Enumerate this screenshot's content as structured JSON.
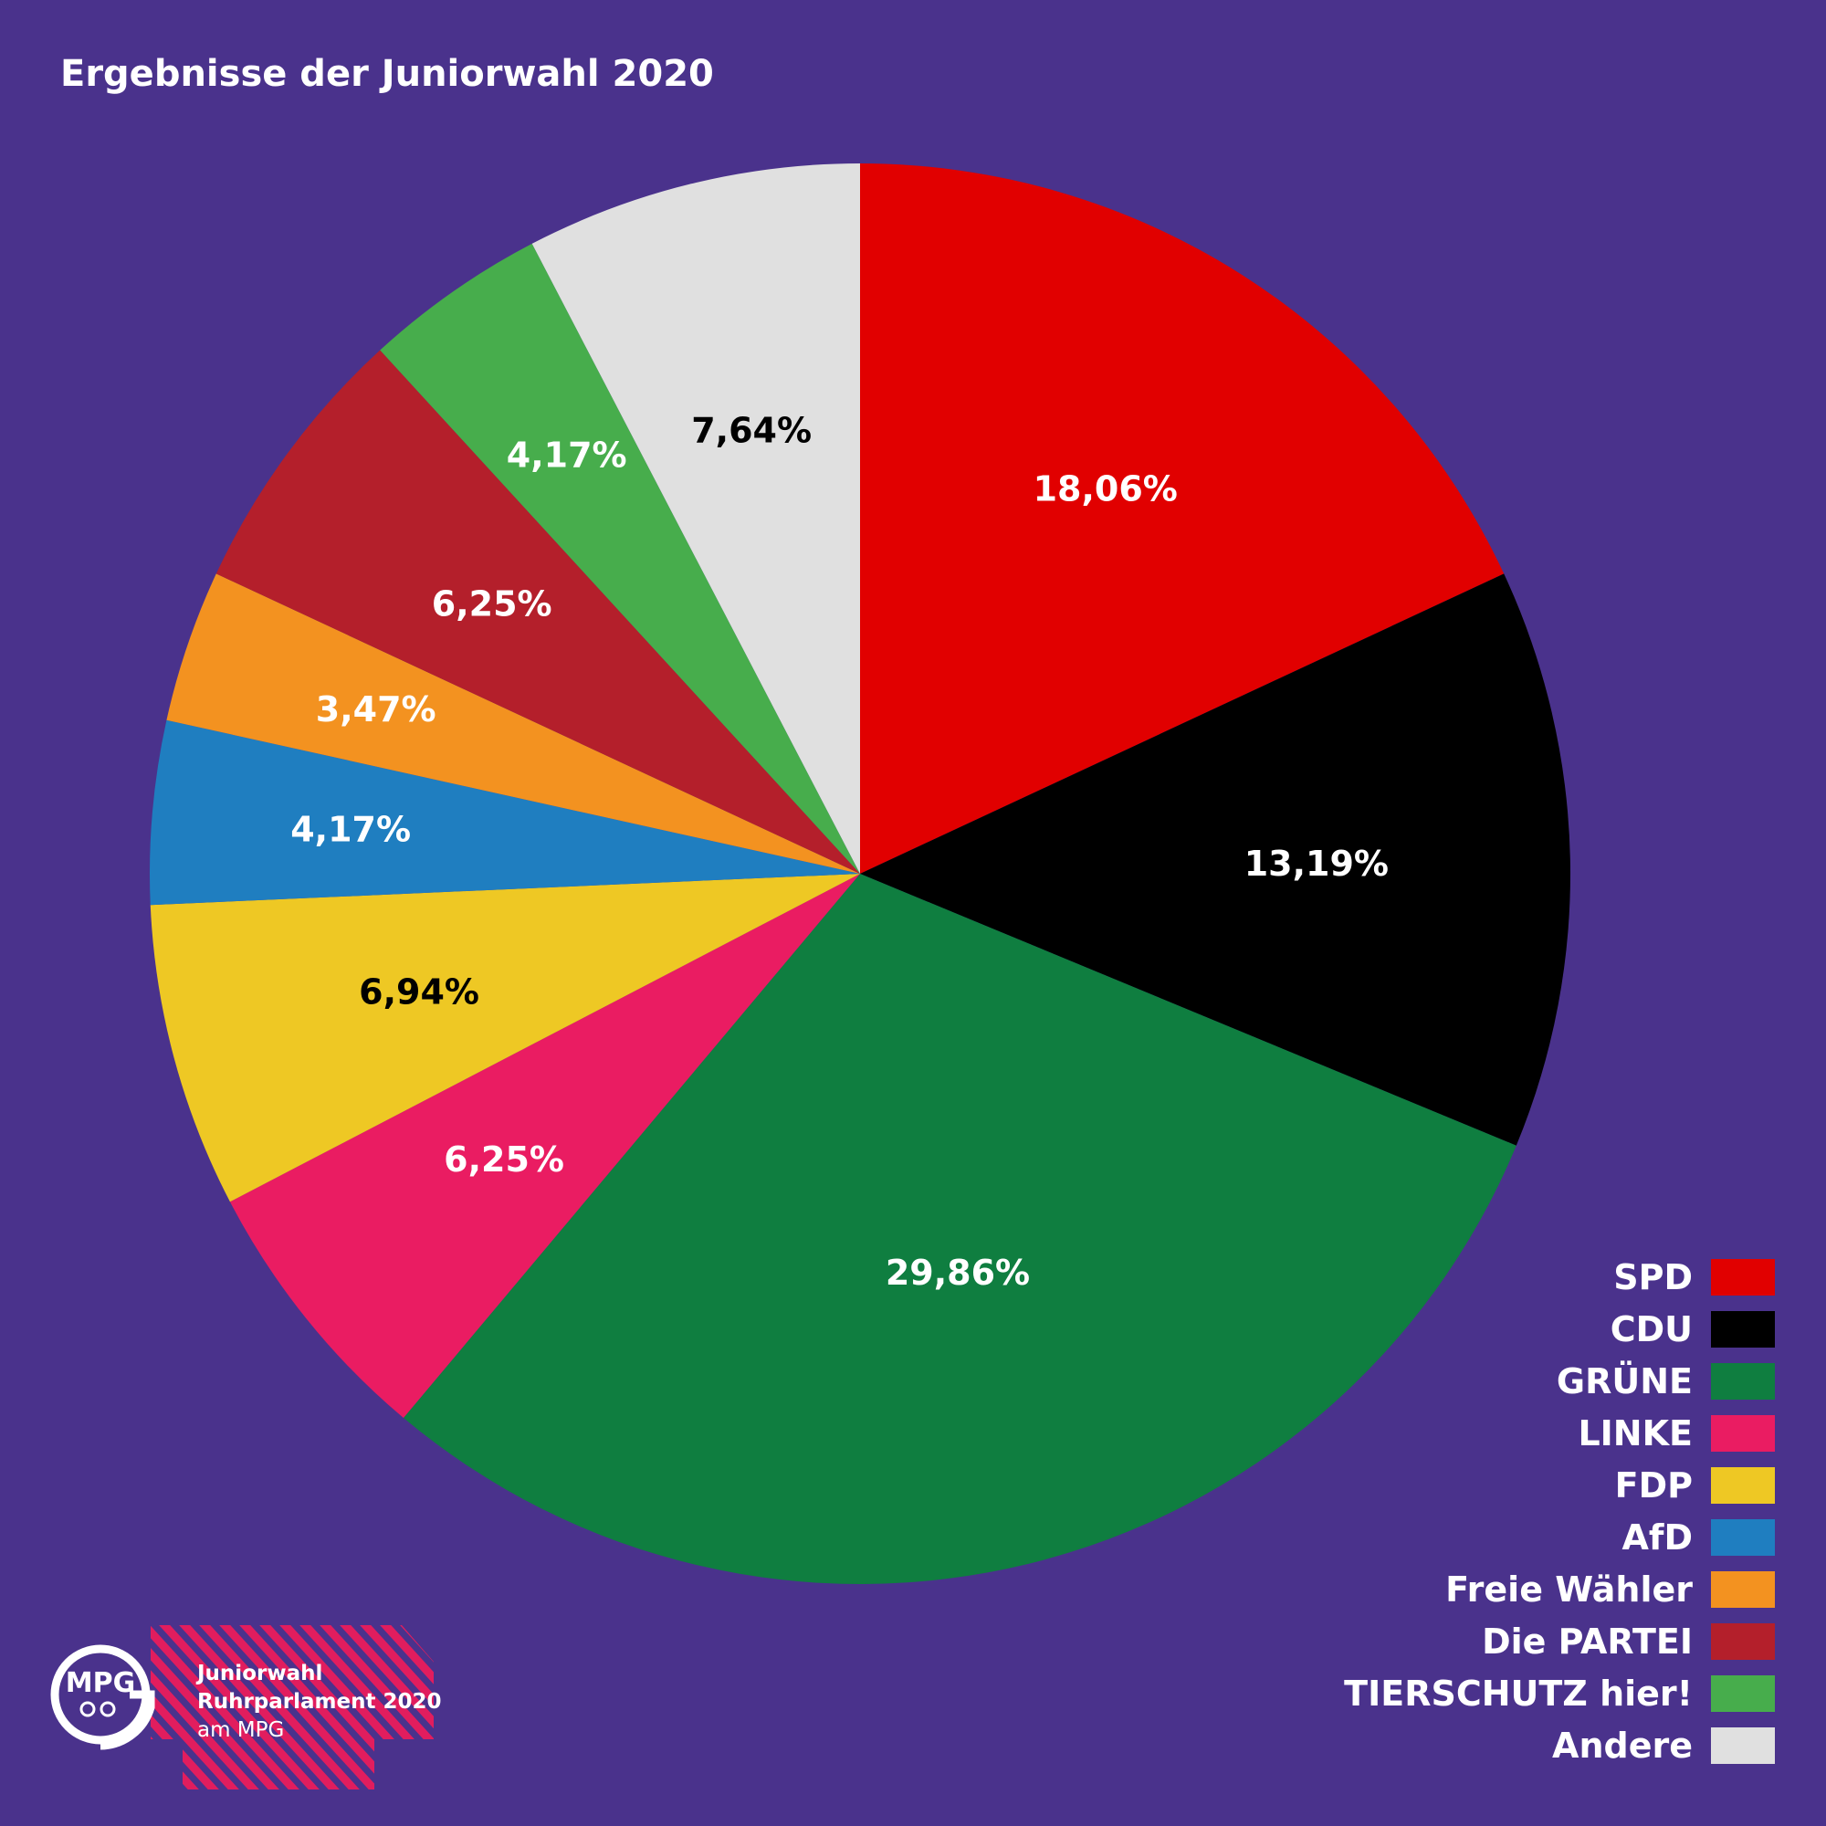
{
  "title": "Ergebnisse der Juniorwahl 2020",
  "chart_data": {
    "type": "pie",
    "title": "Ergebnisse der Juniorwahl 2020",
    "slices": [
      {
        "name": "SPD",
        "value": 18.06,
        "label": "18,06%",
        "color": "#e10000",
        "label_color": "#ffffff"
      },
      {
        "name": "CDU",
        "value": 13.19,
        "label": "13,19%",
        "color": "#000000",
        "label_color": "#ffffff"
      },
      {
        "name": "GRÜNE",
        "value": 29.86,
        "label": "29,86%",
        "color": "#0f7e40",
        "label_color": "#ffffff"
      },
      {
        "name": "LINKE",
        "value": 6.25,
        "label": "6,25%",
        "color": "#ea1c62",
        "label_color": "#ffffff"
      },
      {
        "name": "FDP",
        "value": 6.94,
        "label": "6,94%",
        "color": "#eec824",
        "label_color": "#000000"
      },
      {
        "name": "AfD",
        "value": 4.17,
        "label": "4,17%",
        "color": "#1f7ec0",
        "label_color": "#ffffff"
      },
      {
        "name": "Freie Wähler",
        "value": 3.47,
        "label": "3,47%",
        "color": "#f39220",
        "label_color": "#ffffff"
      },
      {
        "name": "Die PARTEI",
        "value": 6.25,
        "label": "6,25%",
        "color": "#b41f2b",
        "label_color": "#ffffff"
      },
      {
        "name": "TIERSCHUTZ hier!",
        "value": 4.17,
        "label": "4,17%",
        "color": "#47ad4c",
        "label_color": "#ffffff"
      },
      {
        "name": "Andere",
        "value": 7.64,
        "label": "7,64%",
        "color": "#e0e0e0",
        "label_color": "#000000"
      }
    ],
    "legend_position": "bottom-right"
  },
  "logo": {
    "line1": "Juniorwahl",
    "line2": "Ruhrparlament 2020",
    "line3": "am MPG",
    "mark_text": "MPG",
    "stripe_color": "#e11d5e"
  }
}
